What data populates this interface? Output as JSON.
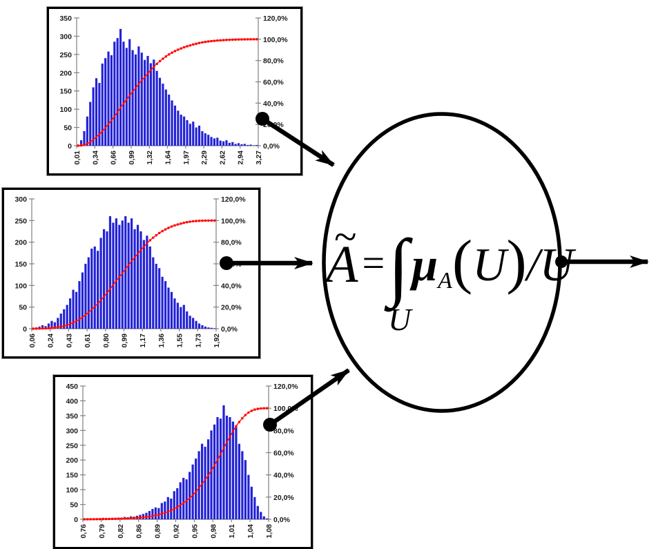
{
  "page": {
    "background": "#ffffff"
  },
  "formula": {
    "tilde": "~",
    "symbol": "A",
    "equals": "=",
    "integral": "∫",
    "domain": "U",
    "mu": "μ",
    "mu_subscript": "A",
    "open_paren": "(",
    "arg": "U",
    "close_paren": ")",
    "slash": "/",
    "denominator": "U"
  },
  "chart_data": [
    {
      "type": "bar",
      "name": "input-histogram-top",
      "title": "",
      "grid": false,
      "legend": "none",
      "left_axis": {
        "max": 350,
        "label_ticks": [
          "0",
          "50",
          "100",
          "150",
          "200",
          "250",
          "300",
          "350"
        ]
      },
      "right_axis": {
        "max": 120,
        "label_ticks": [
          "0,0%",
          "20,0%",
          "40,0%",
          "60,0%",
          "80,0%",
          "100,0%",
          "120,0%"
        ]
      },
      "x_tick_labels": [
        "0,01",
        "0,34",
        "0,66",
        "0,99",
        "1,32",
        "1,64",
        "1,97",
        "2,29",
        "2,62",
        "2,94",
        "3,27"
      ],
      "x_range": [
        0.01,
        3.27
      ],
      "series": [
        {
          "name": "frequency",
          "values": [
            3,
            15,
            40,
            80,
            120,
            160,
            185,
            172,
            225,
            240,
            258,
            248,
            285,
            295,
            320,
            285,
            268,
            292,
            262,
            250,
            272,
            255,
            235,
            246,
            226,
            236,
            205,
            186,
            170,
            154,
            140,
            124,
            110,
            96,
            85,
            80,
            70,
            60,
            66,
            50,
            55,
            40,
            34,
            30,
            24,
            20,
            22,
            14,
            12,
            15,
            8,
            10,
            5,
            7,
            4,
            5,
            2,
            3,
            1,
            2
          ]
        },
        {
          "name": "cumulative-percent",
          "derived": true,
          "rule": "cumsum(frequency)/total*100"
        }
      ],
      "colors": {
        "bars": "#2222d6",
        "cumulative": "#ff0000",
        "axis": "#808080",
        "labels": "#1a1a1a"
      }
    },
    {
      "type": "bar",
      "name": "input-histogram-middle",
      "title": "",
      "grid": false,
      "legend": "none",
      "left_axis": {
        "max": 300,
        "label_ticks": [
          "0",
          "50",
          "100",
          "150",
          "200",
          "250",
          "300"
        ]
      },
      "right_axis": {
        "max": 120,
        "label_ticks": [
          "0,0%",
          "20,0%",
          "40,0%",
          "60,0%",
          "80,0%",
          "100,0%",
          "120,0%"
        ]
      },
      "x_tick_labels": [
        "0,06",
        "0,24",
        "0,43",
        "0,61",
        "0,80",
        "0,99",
        "1,17",
        "1,36",
        "1,55",
        "1,73",
        "1,92"
      ],
      "x_range": [
        0.06,
        1.92
      ],
      "series": [
        {
          "name": "frequency",
          "values": [
            2,
            3,
            5,
            8,
            6,
            12,
            18,
            15,
            25,
            35,
            45,
            55,
            70,
            90,
            85,
            110,
            130,
            150,
            165,
            185,
            190,
            180,
            210,
            230,
            225,
            260,
            245,
            255,
            240,
            250,
            260,
            245,
            255,
            230,
            240,
            225,
            205,
            215,
            190,
            165,
            150,
            140,
            120,
            110,
            95,
            85,
            70,
            60,
            50,
            55,
            40,
            30,
            25,
            18,
            12,
            8,
            5,
            3,
            2,
            1
          ]
        },
        {
          "name": "cumulative-percent",
          "derived": true,
          "rule": "cumsum(frequency)/total*100"
        }
      ],
      "colors": {
        "bars": "#2222d6",
        "cumulative": "#ff0000",
        "axis": "#808080",
        "labels": "#1a1a1a"
      }
    },
    {
      "type": "bar",
      "name": "input-histogram-bottom",
      "title": "",
      "grid": false,
      "legend": "none",
      "left_axis": {
        "max": 450,
        "label_ticks": [
          "0",
          "50",
          "100",
          "150",
          "200",
          "250",
          "300",
          "350",
          "400",
          "450"
        ]
      },
      "right_axis": {
        "max": 120,
        "label_ticks": [
          "0,0%",
          "20,0%",
          "40,0%",
          "60,0%",
          "80,0%",
          "100,0%",
          "120,0%"
        ]
      },
      "x_tick_labels": [
        "0,76",
        "0,79",
        "0,82",
        "0,86",
        "0,89",
        "0,92",
        "0,95",
        "0,98",
        "1,01",
        "1,04",
        "1,08"
      ],
      "x_range": [
        0.76,
        1.08
      ],
      "series": [
        {
          "name": "frequency",
          "values": [
            1,
            1,
            2,
            1,
            2,
            3,
            5,
            4,
            3,
            5,
            4,
            6,
            5,
            8,
            7,
            10,
            9,
            12,
            15,
            18,
            22,
            28,
            35,
            40,
            38,
            55,
            60,
            75,
            70,
            95,
            105,
            125,
            140,
            135,
            160,
            185,
            205,
            230,
            255,
            245,
            270,
            300,
            320,
            345,
            340,
            385,
            350,
            345,
            330,
            310,
            255,
            230,
            200,
            150,
            110,
            75,
            45,
            25,
            10,
            3
          ]
        },
        {
          "name": "cumulative-percent",
          "derived": true,
          "rule": "cumsum(frequency)/total*100"
        }
      ],
      "colors": {
        "bars": "#2222d6",
        "cumulative": "#ff0000",
        "axis": "#808080",
        "labels": "#1a1a1a"
      }
    }
  ],
  "connector_color": "#000000"
}
